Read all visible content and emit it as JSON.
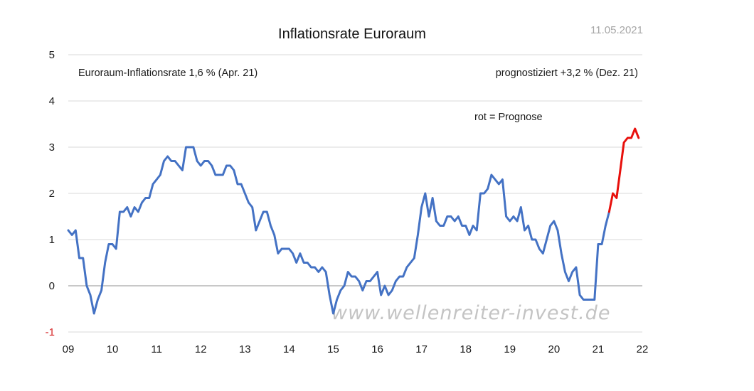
{
  "chart_data": {
    "type": "line",
    "title": "Inflationsrate Euroraum",
    "date_label": "11.05.2021",
    "xlabel": "",
    "ylabel": "",
    "ylim": [
      -1,
      5
    ],
    "yticks": [
      {
        "value": 5,
        "label": "5"
      },
      {
        "value": 4,
        "label": "4"
      },
      {
        "value": 3,
        "label": "3"
      },
      {
        "value": 2,
        "label": "2"
      },
      {
        "value": 1,
        "label": "1"
      },
      {
        "value": 0,
        "label": "0"
      },
      {
        "value": -1,
        "label": "-1"
      }
    ],
    "xlim": [
      2009,
      2022
    ],
    "xticks": [
      {
        "value": 2009,
        "label": "09"
      },
      {
        "value": 2010,
        "label": "10"
      },
      {
        "value": 2011,
        "label": "11"
      },
      {
        "value": 2012,
        "label": "12"
      },
      {
        "value": 2013,
        "label": "13"
      },
      {
        "value": 2014,
        "label": "14"
      },
      {
        "value": 2015,
        "label": "15"
      },
      {
        "value": 2016,
        "label": "16"
      },
      {
        "value": 2017,
        "label": "17"
      },
      {
        "value": 2018,
        "label": "18"
      },
      {
        "value": 2019,
        "label": "19"
      },
      {
        "value": 2020,
        "label": "20"
      },
      {
        "value": 2021,
        "label": "21"
      },
      {
        "value": 2022,
        "label": "22"
      }
    ],
    "grid": true,
    "annotations": [
      {
        "text": "Euroraum-Inflationsrate 1,6 % (Apr. 21)",
        "position": "top-left"
      },
      {
        "text": "prognostiziert  +3,2 % (Dez. 21)",
        "position": "top-right"
      },
      {
        "text": "rot = Prognose",
        "position": "right"
      }
    ],
    "watermark": "www.wellenreiter-invest.de",
    "series": [
      {
        "name": "Euroraum-Inflationsrate",
        "color": "#4472c4",
        "start": "2009-01",
        "frequency": "monthly",
        "values": [
          1.2,
          1.1,
          1.2,
          0.6,
          0.6,
          0.0,
          -0.2,
          -0.6,
          -0.3,
          -0.1,
          0.5,
          0.9,
          0.9,
          0.8,
          1.6,
          1.6,
          1.7,
          1.5,
          1.7,
          1.6,
          1.8,
          1.9,
          1.9,
          2.2,
          2.3,
          2.4,
          2.7,
          2.8,
          2.7,
          2.7,
          2.6,
          2.5,
          3.0,
          3.0,
          3.0,
          2.7,
          2.6,
          2.7,
          2.7,
          2.6,
          2.4,
          2.4,
          2.4,
          2.6,
          2.6,
          2.5,
          2.2,
          2.2,
          2.0,
          1.8,
          1.7,
          1.2,
          1.4,
          1.6,
          1.6,
          1.3,
          1.1,
          0.7,
          0.8,
          0.8,
          0.8,
          0.7,
          0.5,
          0.7,
          0.5,
          0.5,
          0.4,
          0.4,
          0.3,
          0.4,
          0.3,
          -0.2,
          -0.6,
          -0.3,
          -0.1,
          0.0,
          0.3,
          0.2,
          0.2,
          0.1,
          -0.1,
          0.1,
          0.1,
          0.2,
          0.3,
          -0.2,
          0.0,
          -0.2,
          -0.1,
          0.1,
          0.2,
          0.2,
          0.4,
          0.5,
          0.6,
          1.1,
          1.7,
          2.0,
          1.5,
          1.9,
          1.4,
          1.3,
          1.3,
          1.5,
          1.5,
          1.4,
          1.5,
          1.3,
          1.3,
          1.1,
          1.3,
          1.2,
          2.0,
          2.0,
          2.1,
          2.4,
          2.3,
          2.2,
          2.3,
          1.5,
          1.4,
          1.5,
          1.4,
          1.7,
          1.2,
          1.3,
          1.0,
          1.0,
          0.8,
          0.7,
          1.0,
          1.3,
          1.4,
          1.2,
          0.7,
          0.3,
          0.1,
          0.3,
          0.4,
          -0.2,
          -0.3,
          -0.3,
          -0.3,
          -0.3,
          0.9,
          0.9,
          1.3,
          1.6
        ]
      },
      {
        "name": "Prognose",
        "color": "#e8100c",
        "start": "2021-04",
        "frequency": "monthly",
        "values": [
          1.6,
          2.0,
          1.9,
          2.5,
          3.1,
          3.2,
          3.2,
          3.4,
          3.2
        ]
      }
    ]
  }
}
